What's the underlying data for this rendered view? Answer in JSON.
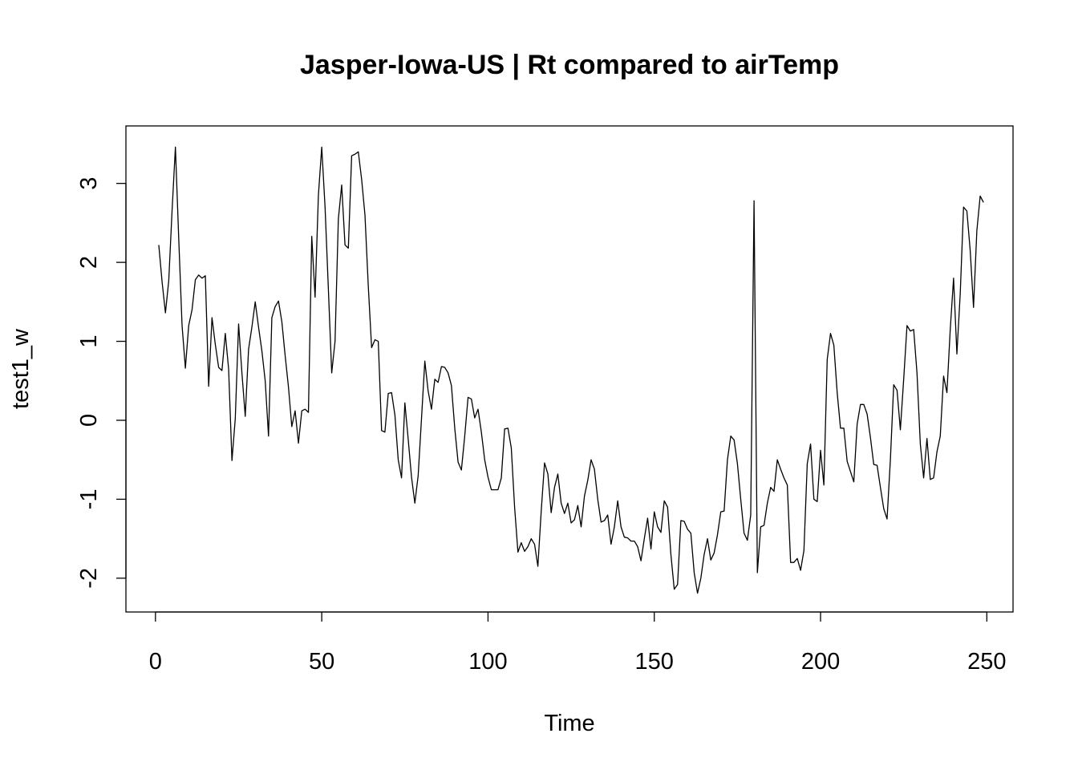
{
  "chart_data": {
    "type": "line",
    "title": "Jasper-Iowa-US | Rt compared to airTemp",
    "xlabel": "Time",
    "ylabel": "test1_w",
    "xlim": [
      1,
      248
    ],
    "ylim": [
      -2.2,
      3.5
    ],
    "x_ticks": [
      0,
      50,
      100,
      150,
      200,
      250
    ],
    "x_tick_labels": [
      "0",
      "50",
      "100",
      "150",
      "200",
      "250"
    ],
    "y_ticks": [
      -2,
      -1,
      0,
      1,
      2,
      3
    ],
    "y_tick_labels": [
      "-2",
      "-1",
      "0",
      "1",
      "2",
      "3"
    ],
    "grid": false,
    "legend": "none",
    "line_color": "#000000",
    "series": [
      {
        "x_start": 1,
        "values": [
          2.22,
          1.75,
          1.36,
          1.77,
          2.66,
          3.46,
          2.3,
          1.2,
          0.66,
          1.2,
          1.4,
          1.78,
          1.84,
          1.8,
          1.83,
          0.43,
          1.3,
          0.96,
          0.67,
          0.63,
          1.1,
          0.65,
          -0.51,
          0.02,
          1.22,
          0.6,
          0.05,
          0.9,
          1.18,
          1.5,
          1.18,
          0.88,
          0.5,
          -0.2,
          1.3,
          1.44,
          1.51,
          1.25,
          0.82,
          0.42,
          -0.08,
          0.12,
          -0.29,
          0.12,
          0.14,
          0.1,
          2.33,
          1.56,
          2.85,
          3.46,
          2.7,
          1.66,
          0.6,
          1.0,
          2.55,
          2.98,
          2.22,
          2.18,
          3.35,
          3.37,
          3.4,
          3.05,
          2.6,
          1.7,
          0.92,
          1.02,
          1.0,
          -0.13,
          -0.15,
          0.34,
          0.35,
          0.07,
          -0.5,
          -0.73,
          0.22,
          -0.24,
          -0.72,
          -1.05,
          -0.7,
          0.02,
          0.75,
          0.37,
          0.14,
          0.52,
          0.48,
          0.68,
          0.67,
          0.6,
          0.44,
          -0.1,
          -0.53,
          -0.63,
          -0.2,
          0.29,
          0.27,
          0.03,
          0.14,
          -0.15,
          -0.5,
          -0.72,
          -0.88,
          -0.88,
          -0.88,
          -0.73,
          -0.11,
          -0.1,
          -0.35,
          -1.1,
          -1.67,
          -1.55,
          -1.66,
          -1.6,
          -1.5,
          -1.57,
          -1.85,
          -1.15,
          -0.54,
          -0.68,
          -1.17,
          -0.85,
          -0.68,
          -1.05,
          -1.18,
          -1.05,
          -1.3,
          -1.26,
          -1.08,
          -1.35,
          -0.96,
          -0.76,
          -0.5,
          -0.62,
          -1.0,
          -1.29,
          -1.27,
          -1.2,
          -1.57,
          -1.35,
          -1.02,
          -1.35,
          -1.48,
          -1.49,
          -1.53,
          -1.53,
          -1.6,
          -1.78,
          -1.5,
          -1.24,
          -1.63,
          -1.16,
          -1.35,
          -1.42,
          -1.02,
          -1.1,
          -1.7,
          -2.14,
          -2.08,
          -1.27,
          -1.28,
          -1.38,
          -1.43,
          -1.93,
          -2.19,
          -2.0,
          -1.7,
          -1.5,
          -1.77,
          -1.68,
          -1.45,
          -1.16,
          -1.15,
          -0.5,
          -0.2,
          -0.25,
          -0.55,
          -1.0,
          -1.43,
          -1.52,
          -1.2,
          2.78,
          -1.93,
          -1.35,
          -1.33,
          -1.05,
          -0.85,
          -0.9,
          -0.5,
          -0.62,
          -0.73,
          -0.82,
          -1.8,
          -1.8,
          -1.75,
          -1.9,
          -1.65,
          -0.55,
          -0.3,
          -1.0,
          -1.03,
          -0.38,
          -0.82,
          0.77,
          1.1,
          0.95,
          0.35,
          -0.1,
          -0.1,
          -0.52,
          -0.65,
          -0.78,
          -0.05,
          0.2,
          0.2,
          0.08,
          -0.22,
          -0.56,
          -0.57,
          -0.85,
          -1.12,
          -1.25,
          -0.5,
          0.45,
          0.38,
          -0.12,
          0.52,
          1.2,
          1.13,
          1.15,
          0.6,
          -0.3,
          -0.73,
          -0.23,
          -0.75,
          -0.73,
          -0.4,
          -0.2,
          0.56,
          0.35,
          1.15,
          1.8,
          0.84,
          1.6,
          2.7,
          2.65,
          2.15,
          1.43,
          2.4,
          2.84,
          2.76
        ]
      }
    ]
  }
}
